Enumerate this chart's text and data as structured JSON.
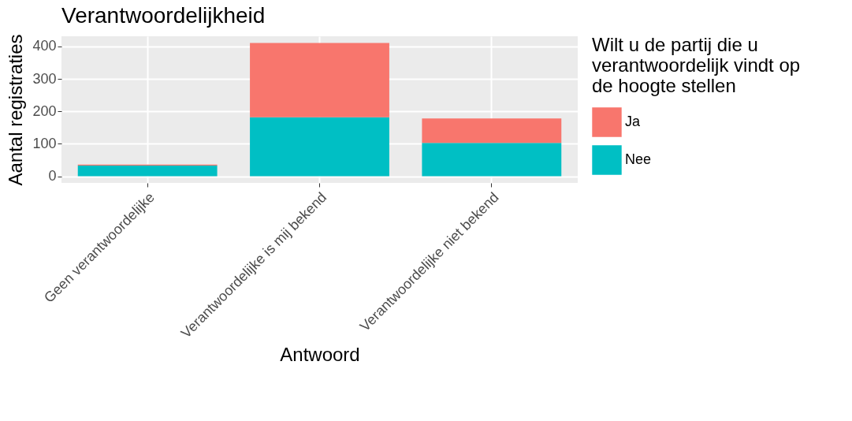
{
  "chart_data": {
    "type": "bar",
    "title": "Verantwoordelijkheid",
    "xlabel": "Antwoord",
    "ylabel": "Aantal registraties",
    "legend_title": "Wilt u de partij die u verantwoordelijk vindt op de hoogte stellen",
    "categories": [
      "Geen verantwoordelijke",
      "Verantwoordelijke is mij bekend",
      "Verantwoordelijke niet bekend"
    ],
    "stacked": true,
    "series": [
      {
        "name": "Nee",
        "color": "#00bfc4",
        "values": [
          33,
          182,
          103
        ]
      },
      {
        "name": "Ja",
        "color": "#f8766d",
        "values": [
          3,
          229,
          75
        ]
      }
    ],
    "ylim": [
      -20.5,
      431.5
    ],
    "yticks": [
      0,
      100,
      200,
      300,
      400
    ],
    "grid": true,
    "legend": "right"
  }
}
